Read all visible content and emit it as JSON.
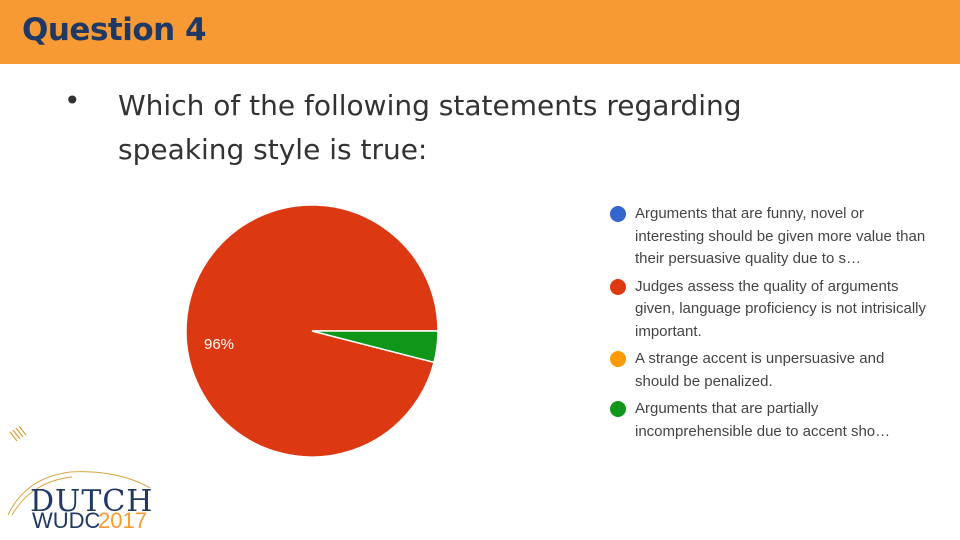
{
  "header": {
    "title": "Question 4"
  },
  "question": {
    "bullet": "•",
    "text": "Which of the following statements regarding speaking style is true:"
  },
  "chart_data": {
    "type": "pie",
    "slices": [
      {
        "label": "Arguments that are funny, novel or interesting should be given more value than their persuasive quality due to s…",
        "value": 0,
        "color": "#3366cc"
      },
      {
        "label": "Judges assess the quality of arguments given, language proficiency is not intrisically important.",
        "value": 96,
        "color": "#dc3912",
        "data_label": "96%"
      },
      {
        "label": "A strange accent is unpersuasive and should be penalized.",
        "value": 0,
        "color": "#ff9900"
      },
      {
        "label": "Arguments that are partially incomprehensible due to accent sho…",
        "value": 4,
        "color": "#109618"
      }
    ],
    "legend_position": "right"
  },
  "logo": {
    "dutch": "DUTCH",
    "wudc": "WUDC",
    "year": "2017"
  }
}
